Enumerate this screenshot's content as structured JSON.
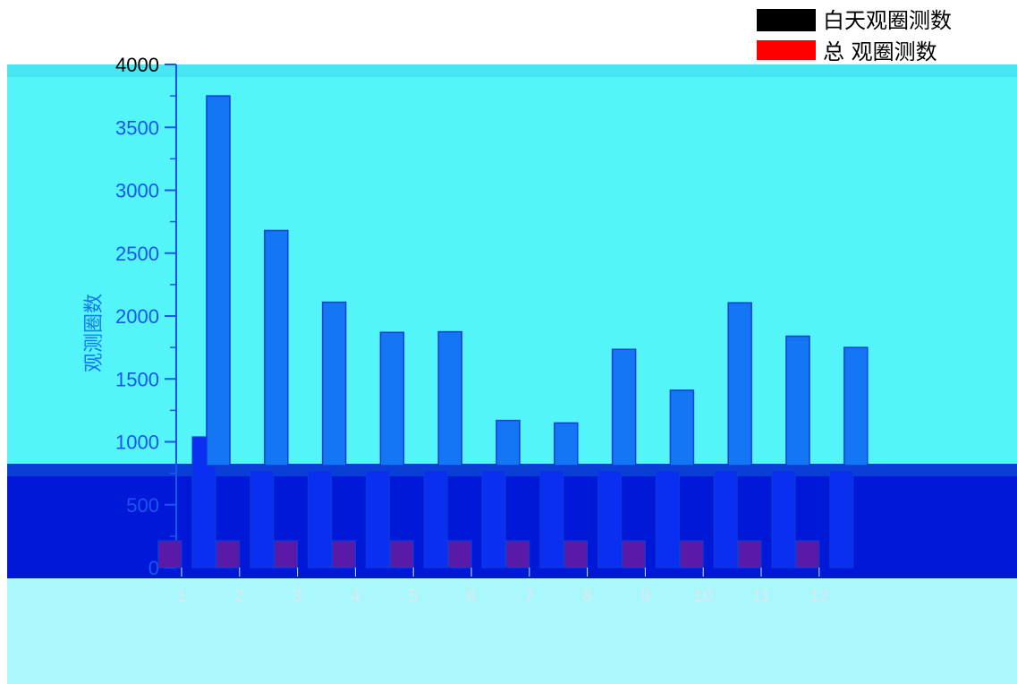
{
  "chart_data": {
    "type": "bar",
    "categories": [
      "1",
      "2",
      "3",
      "4",
      "5",
      "6",
      "7",
      "8",
      "9",
      "10",
      "11",
      "12"
    ],
    "series": [
      {
        "name": "白天观圈测数",
        "values": [
          1040,
          770,
          770,
          770,
          770,
          770,
          770,
          770,
          770,
          770,
          770,
          770
        ]
      },
      {
        "name": "总 观圈测数",
        "values": [
          3750,
          2680,
          2110,
          1870,
          1875,
          1170,
          1150,
          1735,
          1410,
          2105,
          1840,
          1750
        ]
      }
    ],
    "xlabel": "",
    "ylabel": "观测圈数",
    "ylim": [
      0,
      4000
    ],
    "yticks": [
      0,
      500,
      1000,
      1500,
      2000,
      2500,
      3000,
      3500,
      4000
    ],
    "grid": false,
    "legend": "top-right",
    "colors": {
      "background": "#54f5f8",
      "bottom_band_dark": "#0018d8",
      "bottom_band_light": "#aaf8fc",
      "bar_total": "#1476f5",
      "bar_total_edge": "#0a3fd6",
      "bar_day": "#0a2ff0",
      "bar_day_low": "#5a1aa8",
      "axis": "#1a55f0",
      "legend_black": "#000000",
      "legend_red": "#ff0000"
    }
  }
}
